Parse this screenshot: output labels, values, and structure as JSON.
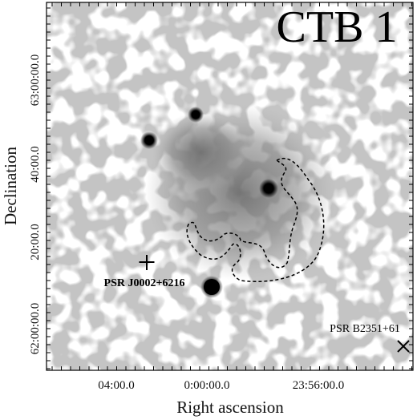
{
  "figure": {
    "title": "CTB 1",
    "x_axis": {
      "label": "Right ascension",
      "ticks": [
        "04:00.0",
        "0:00:00.0",
        "23:56:00.0"
      ]
    },
    "y_axis": {
      "label": "Declination",
      "ticks": [
        "63:00:00.0",
        "40:00.0",
        "20:00.0",
        "62:00:00.0"
      ]
    },
    "annotations": [
      "PSR J0002+6216",
      "PSR B2351+61"
    ]
  }
}
